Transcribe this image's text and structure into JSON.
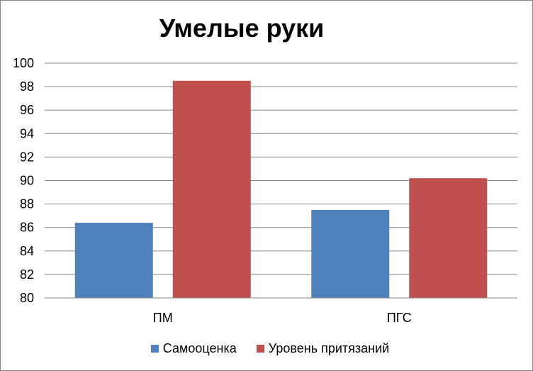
{
  "chart_data": {
    "type": "bar",
    "title": "Умелые руки",
    "xlabel": "",
    "ylabel": "",
    "categories": [
      "ПМ",
      "ПГС"
    ],
    "series": [
      {
        "name": "Самооценка",
        "values": [
          86.4,
          87.5
        ],
        "color": "#4F81BD"
      },
      {
        "name": "Уровень притязаний",
        "values": [
          98.5,
          90.2
        ],
        "color": "#C0504D"
      }
    ],
    "ylim": [
      80,
      100
    ],
    "yticks": [
      "80",
      "82",
      "84",
      "86",
      "88",
      "90",
      "92",
      "94",
      "96",
      "98",
      "100"
    ],
    "grid": true,
    "legend_position": "bottom"
  }
}
